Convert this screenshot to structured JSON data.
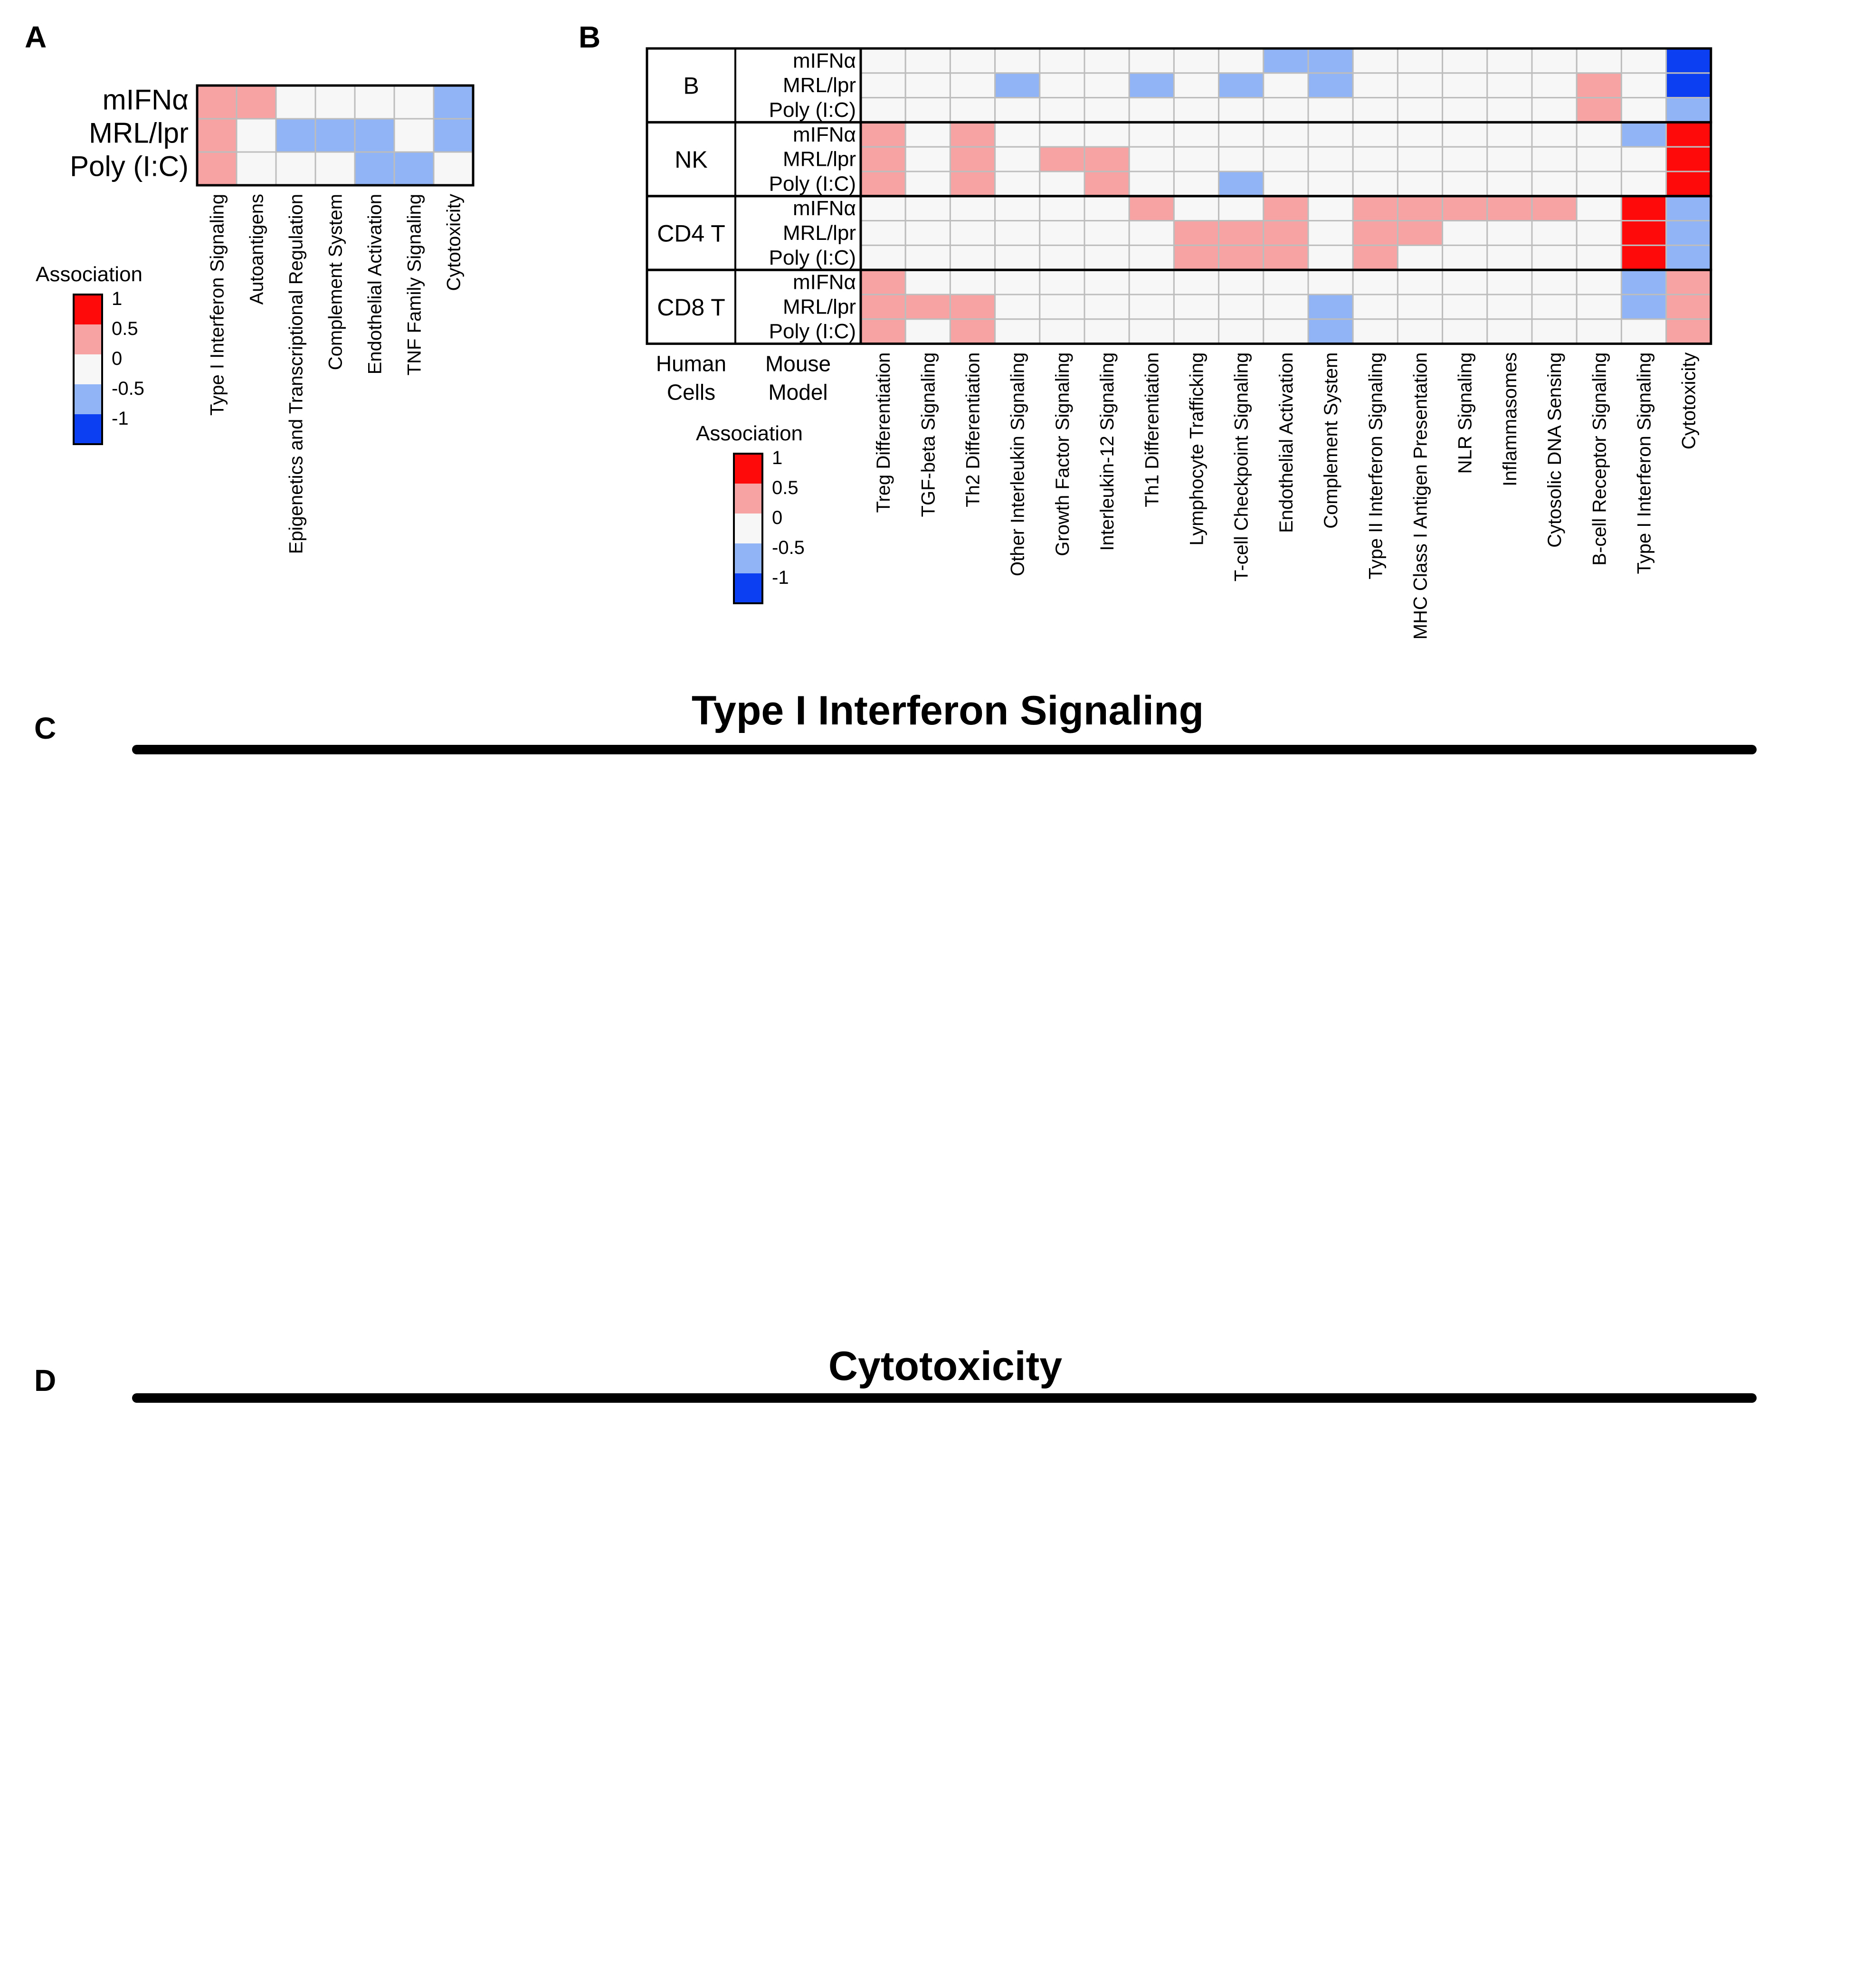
{
  "panel_labels": {
    "a": "A",
    "b": "B",
    "c": "C",
    "d": "D"
  },
  "colors": {
    "strong_pos": "#ff0a0a",
    "pos": "#f7a3a3",
    "neutral": "#f7f7f7",
    "neg": "#90b4f5",
    "strong_neg": "#0d3ff2",
    "grid": "#bdbdbd"
  },
  "chart_data": [
    {
      "id": "A",
      "type": "heatmap",
      "title": "",
      "rows": [
        "mIFNα",
        "MRL/lpr",
        "Poly (I:C)"
      ],
      "columns": [
        "Type I Interferon Signaling",
        "Autoantigens",
        "Epigenetics and Transcriptional Regulation",
        "Complement System",
        "Endothelial Activation",
        "TNF Family Signaling",
        "Cytotoxicity"
      ],
      "values": [
        [
          0.5,
          0.5,
          0,
          0,
          0,
          0,
          -0.5
        ],
        [
          0.5,
          0,
          -0.5,
          -0.5,
          -0.5,
          0,
          -0.5
        ],
        [
          0.5,
          0,
          0,
          0,
          -0.5,
          -0.5,
          0
        ]
      ],
      "legend": {
        "title": "Association",
        "labels": [
          "1",
          "0.5",
          "0",
          "-0.5",
          "-1"
        ]
      }
    },
    {
      "id": "B",
      "type": "heatmap",
      "title": "",
      "row_header": "Human Cells",
      "subrow_header": "Mouse Model",
      "groups": [
        "B",
        "NK",
        "CD4 T",
        "CD8 T"
      ],
      "subrows": [
        "mIFNα",
        "MRL/lpr",
        "Poly (I:C)"
      ],
      "columns": [
        "Treg Differentiation",
        "TGF-beta Signaling",
        "Th2 Differentiation",
        "Other Interleukin Signaling",
        "Growth Factor Signaling",
        "Interleukin-12 Signaling",
        "Th1 Differentiation",
        "Lymphocyte Trafficking",
        "T-cell Checkpoint Signaling",
        "Endothelial Activation",
        "Complement System",
        "Type II Interferon Signaling",
        "MHC Class I Antigen Presentation",
        "NLR Signaling",
        "Inflammasomes",
        "Cytosolic DNA Sensing",
        "B-cell Receptor Signaling",
        "Type I Interferon Signaling",
        "Cytotoxicity"
      ],
      "values": [
        [
          0,
          0,
          0,
          0,
          0,
          0,
          0,
          0,
          0,
          -0.5,
          -0.5,
          0,
          0,
          0,
          0,
          0,
          0,
          0,
          -1
        ],
        [
          0,
          0,
          0,
          -0.5,
          0,
          0,
          -0.5,
          0,
          -0.5,
          0,
          -0.5,
          0,
          0,
          0,
          0,
          0,
          0.5,
          0,
          -1
        ],
        [
          0,
          0,
          0,
          0,
          0,
          0,
          0,
          0,
          0,
          0,
          0,
          0,
          0,
          0,
          0,
          0,
          0.5,
          0,
          -0.5
        ],
        [
          0.5,
          0,
          0.5,
          0,
          0,
          0,
          0,
          0,
          0,
          0,
          0,
          0,
          0,
          0,
          0,
          0,
          0,
          -0.5,
          1
        ],
        [
          0.5,
          0,
          0.5,
          0,
          0.5,
          0.5,
          0,
          0,
          0,
          0,
          0,
          0,
          0,
          0,
          0,
          0,
          0,
          0,
          1
        ],
        [
          0.5,
          0,
          0.5,
          0,
          0,
          0.5,
          0,
          0,
          -0.5,
          0,
          0,
          0,
          0,
          0,
          0,
          0,
          0,
          0,
          1
        ],
        [
          0,
          0,
          0,
          0,
          0,
          0,
          0.5,
          0,
          0,
          0.5,
          0,
          0.5,
          0.5,
          0.5,
          0.5,
          0.5,
          0,
          1,
          -0.5
        ],
        [
          0,
          0,
          0,
          0,
          0,
          0,
          0,
          0.5,
          0.5,
          0.5,
          0,
          0.5,
          0.5,
          0,
          0,
          0,
          0,
          1,
          -0.5
        ],
        [
          0,
          0,
          0,
          0,
          0,
          0,
          0,
          0.5,
          0.5,
          0.5,
          0,
          0.5,
          0,
          0,
          0,
          0,
          0,
          1,
          -0.5
        ],
        [
          0.5,
          0,
          0,
          0,
          0,
          0,
          0,
          0,
          0,
          0,
          0,
          0,
          0,
          0,
          0,
          0,
          0,
          -0.5,
          0.5
        ],
        [
          0.5,
          0.5,
          0.5,
          0,
          0,
          0,
          0,
          0,
          0,
          0,
          -0.5,
          0,
          0,
          0,
          0,
          0,
          0,
          -0.5,
          0.5
        ],
        [
          0.5,
          0,
          0.5,
          0,
          0,
          0,
          0,
          0,
          0,
          0,
          -0.5,
          0,
          0,
          0,
          0,
          0,
          0,
          0,
          0.5
        ]
      ],
      "legend": {
        "title": "Association",
        "labels": [
          "1",
          "0.5",
          "0",
          "-0.5",
          "-1"
        ]
      }
    }
  ],
  "section_c": {
    "title": "Type I Interferon Signaling"
  },
  "section_d": {
    "title": "Cytotoxicity"
  }
}
